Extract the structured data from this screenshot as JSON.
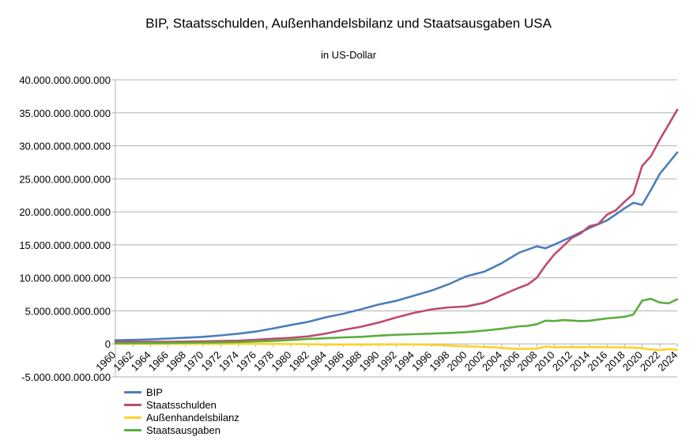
{
  "chart_data": {
    "type": "line",
    "title": "BIP, Staatsschulden, Außenhandelsbilanz und Staatsausgaben USA",
    "subtitle": "in US-Dollar",
    "xlabel": "",
    "ylabel": "",
    "ylim": [
      -5000000000000,
      40000000000000
    ],
    "yticks": [
      40000000000000,
      35000000000000,
      30000000000000,
      25000000000000,
      20000000000000,
      15000000000000,
      10000000000000,
      5000000000000,
      0,
      -5000000000000
    ],
    "ytick_labels": [
      "40.000.000.000.000",
      "35.000.000.000.000",
      "30.000.000.000.000",
      "25.000.000.000.000",
      "20.000.000.000.000",
      "15.000.000.000.000",
      "10.000.000.000.000",
      "5.000.000.000.000",
      "0",
      "-5.000.000.000.000"
    ],
    "xlim": [
      1960,
      2024
    ],
    "xtick_labels": [
      "1960",
      "1962",
      "1964",
      "1966",
      "1968",
      "1970",
      "1972",
      "1974",
      "1976",
      "1978",
      "1980",
      "1982",
      "1984",
      "1986",
      "1988",
      "1990",
      "1992",
      "1994",
      "1996",
      "1998",
      "2000",
      "2002",
      "2004",
      "2006",
      "2008",
      "2010",
      "2012",
      "2014",
      "2016",
      "2018",
      "2020",
      "2022",
      "2024"
    ],
    "grid": "horizontal",
    "legend_position": "bottom-left",
    "series": [
      {
        "name": "BIP",
        "color": "#4a7ebb",
        "x": [
          1960,
          1962,
          1964,
          1966,
          1968,
          1970,
          1972,
          1974,
          1976,
          1978,
          1980,
          1982,
          1984,
          1986,
          1988,
          1990,
          1992,
          1994,
          1996,
          1998,
          2000,
          2002,
          2004,
          2006,
          2008,
          2009,
          2010,
          2012,
          2014,
          2016,
          2018,
          2019,
          2020,
          2021,
          2022,
          2023,
          2024
        ],
        "values": [
          540000000000,
          600000000000,
          690000000000,
          820000000000,
          940000000000,
          1070000000000,
          1280000000000,
          1550000000000,
          1870000000000,
          2350000000000,
          2860000000000,
          3340000000000,
          4040000000000,
          4580000000000,
          5240000000000,
          5960000000000,
          6520000000000,
          7290000000000,
          8070000000000,
          9060000000000,
          10250000000000,
          10930000000000,
          12210000000000,
          13820000000000,
          14770000000000,
          14480000000000,
          15050000000000,
          16250000000000,
          17550000000000,
          18700000000000,
          20530000000000,
          21380000000000,
          21060000000000,
          23320000000000,
          25740000000000,
          27360000000000,
          29000000000000
        ]
      },
      {
        "name": "Staatsschulden",
        "color": "#be4b6f",
        "x": [
          1960,
          1962,
          1964,
          1966,
          1968,
          1970,
          1972,
          1974,
          1976,
          1978,
          1980,
          1982,
          1984,
          1986,
          1988,
          1990,
          1992,
          1994,
          1996,
          1998,
          2000,
          2002,
          2004,
          2006,
          2007,
          2008,
          2009,
          2010,
          2011,
          2012,
          2013,
          2014,
          2015,
          2016,
          2017,
          2018,
          2019,
          2020,
          2021,
          2022,
          2023,
          2024
        ],
        "values": [
          290000000000,
          300000000000,
          320000000000,
          330000000000,
          350000000000,
          380000000000,
          430000000000,
          480000000000,
          630000000000,
          780000000000,
          910000000000,
          1140000000000,
          1570000000000,
          2120000000000,
          2600000000000,
          3230000000000,
          4000000000000,
          4690000000000,
          5220000000000,
          5530000000000,
          5670000000000,
          6230000000000,
          7380000000000,
          8510000000000,
          9010000000000,
          10020000000000,
          11910000000000,
          13560000000000,
          14790000000000,
          16070000000000,
          16740000000000,
          17820000000000,
          18150000000000,
          19570000000000,
          20240000000000,
          21520000000000,
          22720000000000,
          26950000000000,
          28430000000000,
          30930000000000,
          33170000000000,
          35460000000000
        ]
      },
      {
        "name": "Außenhandelsbilanz",
        "color": "#fdd329",
        "x": [
          1960,
          1965,
          1970,
          1975,
          1980,
          1985,
          1990,
          1995,
          2000,
          2003,
          2005,
          2006,
          2008,
          2009,
          2010,
          2015,
          2019,
          2020,
          2021,
          2022,
          2023,
          2024
        ],
        "values": [
          4000000000,
          5000000000,
          2000000000,
          13000000000,
          -19000000000,
          -115000000000,
          -77000000000,
          -96000000000,
          -370000000000,
          -500000000000,
          -710000000000,
          -760000000000,
          -710000000000,
          -390000000000,
          -500000000000,
          -490000000000,
          -560000000000,
          -650000000000,
          -850000000000,
          -950000000000,
          -780000000000,
          -900000000000
        ]
      },
      {
        "name": "Staatsausgaben",
        "color": "#59ae3c",
        "x": [
          1960,
          1962,
          1964,
          1966,
          1968,
          1970,
          1972,
          1974,
          1976,
          1978,
          1980,
          1982,
          1984,
          1986,
          1988,
          1990,
          1992,
          1994,
          1996,
          1998,
          2000,
          2002,
          2004,
          2006,
          2007,
          2008,
          2009,
          2010,
          2011,
          2012,
          2013,
          2014,
          2015,
          2016,
          2017,
          2018,
          2019,
          2020,
          2021,
          2022,
          2023,
          2024
        ],
        "values": [
          92000000000,
          107000000000,
          119000000000,
          135000000000,
          178000000000,
          196000000000,
          231000000000,
          269000000000,
          372000000000,
          459000000000,
          591000000000,
          746000000000,
          852000000000,
          990000000000,
          1064000000000,
          1253000000000,
          1382000000000,
          1462000000000,
          1560000000000,
          1652000000000,
          1789000000000,
          2011000000000,
          2293000000000,
          2655000000000,
          2729000000000,
          2983000000000,
          3518000000000,
          3457000000000,
          3603000000000,
          3537000000000,
          3455000000000,
          3506000000000,
          3692000000000,
          3853000000000,
          3982000000000,
          4109000000000,
          4447000000000,
          6554000000000,
          6822000000000,
          6272000000000,
          6135000000000,
          6750000000000
        ]
      }
    ]
  }
}
